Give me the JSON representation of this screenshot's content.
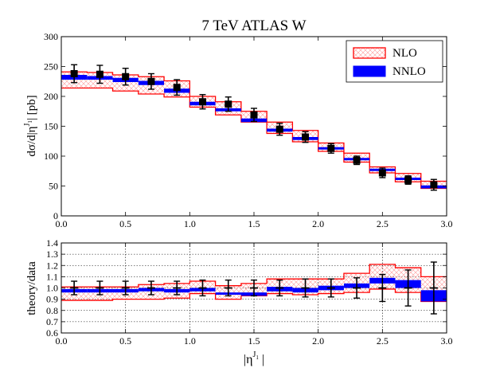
{
  "chart_data": [
    {
      "type": "step",
      "title": "7 TeV ATLAS W",
      "xlabel": "",
      "ylabel": "dσ/d|η^{J1}| [pb]",
      "ylabel_parts": [
        "dσ/d|η",
        "J",
        "1",
        "| [pb]"
      ],
      "xlim": [
        0,
        3
      ],
      "ylim": [
        0,
        300
      ],
      "xticks": [
        "0.0",
        "0.5",
        "1.0",
        "1.5",
        "2.0",
        "2.5",
        "3.0"
      ],
      "yticks": [
        "0",
        "50",
        "100",
        "150",
        "200",
        "250",
        "300"
      ],
      "legend": {
        "position": "top-right",
        "entries": [
          {
            "label": "NLO",
            "style": "red-hatched-band"
          },
          {
            "label": "NNLO",
            "style": "blue-filled-band"
          }
        ]
      },
      "bin_edges": [
        0,
        0.2,
        0.4,
        0.6,
        0.8,
        1.0,
        1.2,
        1.4,
        1.6,
        1.8,
        2.0,
        2.2,
        2.4,
        2.6,
        2.8,
        3.0
      ],
      "series": [
        {
          "name": "NLO",
          "color": "#ff0000",
          "low": [
            214,
            214,
            209,
            204,
            199,
            182,
            169,
            157,
            138,
            124,
            108,
            90,
            72,
            57,
            46
          ],
          "high": [
            241,
            240,
            236,
            233,
            226,
            200,
            191,
            175,
            157,
            143,
            122,
            105,
            82,
            71,
            58
          ]
        },
        {
          "name": "NNLO",
          "color": "#0000ff",
          "low": [
            228,
            228,
            224,
            219,
            206,
            185,
            175,
            157,
            141,
            127,
            111,
            93,
            75,
            60,
            46
          ],
          "high": [
            236,
            234,
            231,
            226,
            213,
            191,
            180,
            163,
            146,
            132,
            115,
            97,
            79,
            64,
            51
          ]
        },
        {
          "name": "Data",
          "color": "#000000",
          "x": [
            0.1,
            0.3,
            0.5,
            0.7,
            0.9,
            1.1,
            1.3,
            1.5,
            1.7,
            1.9,
            2.1,
            2.3,
            2.5,
            2.7,
            2.9
          ],
          "y": [
            238,
            237,
            233,
            225,
            215,
            191,
            187,
            169,
            145,
            132,
            113,
            93,
            72,
            60,
            52
          ],
          "yerr": [
            15,
            15,
            14,
            13,
            13,
            12,
            12,
            11,
            10,
            9,
            8,
            7,
            8,
            7,
            9
          ]
        }
      ]
    },
    {
      "type": "step",
      "title": "",
      "xlabel": "|η^{J1}|",
      "xlabel_parts": [
        "|η",
        "J",
        "1",
        " |"
      ],
      "ylabel": "theory/data",
      "xlim": [
        0,
        3
      ],
      "ylim": [
        0.6,
        1.4
      ],
      "xticks": [
        "0.0",
        "0.5",
        "1.0",
        "1.5",
        "2.0",
        "2.5",
        "3.0"
      ],
      "yticks": [
        "0.6",
        "0.7",
        "0.8",
        "0.9",
        "1.0",
        "1.1",
        "1.2",
        "1.3",
        "1.4"
      ],
      "grid": true,
      "bin_edges": [
        0,
        0.2,
        0.4,
        0.6,
        0.8,
        1.0,
        1.2,
        1.4,
        1.6,
        1.8,
        2.0,
        2.2,
        2.4,
        2.6,
        2.8,
        3.0
      ],
      "series": [
        {
          "name": "NLO",
          "color": "#ff0000",
          "low": [
            0.89,
            0.89,
            0.9,
            0.9,
            0.91,
            0.95,
            0.9,
            0.93,
            0.95,
            0.94,
            0.95,
            0.96,
            0.99,
            0.96,
            0.88
          ],
          "high": [
            1.01,
            1.01,
            1.01,
            1.03,
            1.04,
            1.06,
            1.02,
            1.04,
            1.08,
            1.08,
            1.08,
            1.13,
            1.21,
            1.18,
            1.1
          ]
        },
        {
          "name": "NNLO",
          "color": "#0000ff",
          "low": [
            0.96,
            0.96,
            0.96,
            0.97,
            0.96,
            0.97,
            0.94,
            0.93,
            0.97,
            0.96,
            0.98,
            1.0,
            1.04,
            1.0,
            0.88
          ],
          "high": [
            0.99,
            0.99,
            0.99,
            1.0,
            0.99,
            1.0,
            0.96,
            0.96,
            1.01,
            1.0,
            1.02,
            1.04,
            1.09,
            1.07,
            0.98
          ]
        },
        {
          "name": "Data",
          "color": "#000000",
          "x": [
            0.1,
            0.3,
            0.5,
            0.7,
            0.9,
            1.1,
            1.3,
            1.5,
            1.7,
            1.9,
            2.1,
            2.3,
            2.5,
            2.7,
            2.9
          ],
          "y": [
            1.0,
            1.0,
            1.0,
            1.0,
            1.0,
            1.0,
            1.0,
            1.0,
            1.0,
            1.0,
            1.0,
            1.0,
            1.0,
            1.0,
            1.0
          ],
          "yerr": [
            0.06,
            0.06,
            0.06,
            0.06,
            0.06,
            0.07,
            0.07,
            0.07,
            0.07,
            0.08,
            0.08,
            0.09,
            0.12,
            0.16,
            0.23
          ]
        }
      ]
    }
  ]
}
